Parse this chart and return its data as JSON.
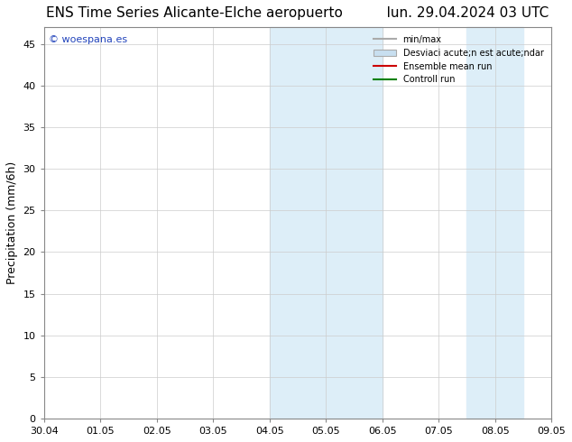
{
  "title_left": "ENS Time Series Alicante-Elche aeropuerto",
  "title_right": "lun. 29.04.2024 03 UTC",
  "ylabel": "Precipitation (mm/6h)",
  "watermark": "© woespana.es",
  "xtick_labels": [
    "30.04",
    "01.05",
    "02.05",
    "03.05",
    "04.05",
    "05.05",
    "06.05",
    "07.05",
    "08.05",
    "09.05"
  ],
  "ytick_values": [
    0,
    5,
    10,
    15,
    20,
    25,
    30,
    35,
    40,
    45
  ],
  "ylim": [
    0,
    47
  ],
  "xlim": [
    0,
    9
  ],
  "shaded_regions": [
    {
      "xmin": 4.0,
      "xmax": 5.0,
      "color": "#ddeef8"
    },
    {
      "xmin": 5.0,
      "xmax": 6.0,
      "color": "#ddeef8"
    },
    {
      "xmin": 7.5,
      "xmax": 8.5,
      "color": "#ddeef8"
    }
  ],
  "legend_labels": [
    "min/max",
    "Desviaci acute;n est acute;ndar",
    "Ensemble mean run",
    "Controll run"
  ],
  "legend_colors_line": [
    "#aaaaaa",
    null,
    "#cc0000",
    "#008000"
  ],
  "legend_patch_color": "#c8dff0",
  "bg_color": "#ffffff",
  "plot_bg_color": "#ffffff",
  "grid_color": "#cccccc",
  "title_fontsize": 11,
  "tick_fontsize": 8,
  "ylabel_fontsize": 9,
  "watermark_color": "#2244bb"
}
